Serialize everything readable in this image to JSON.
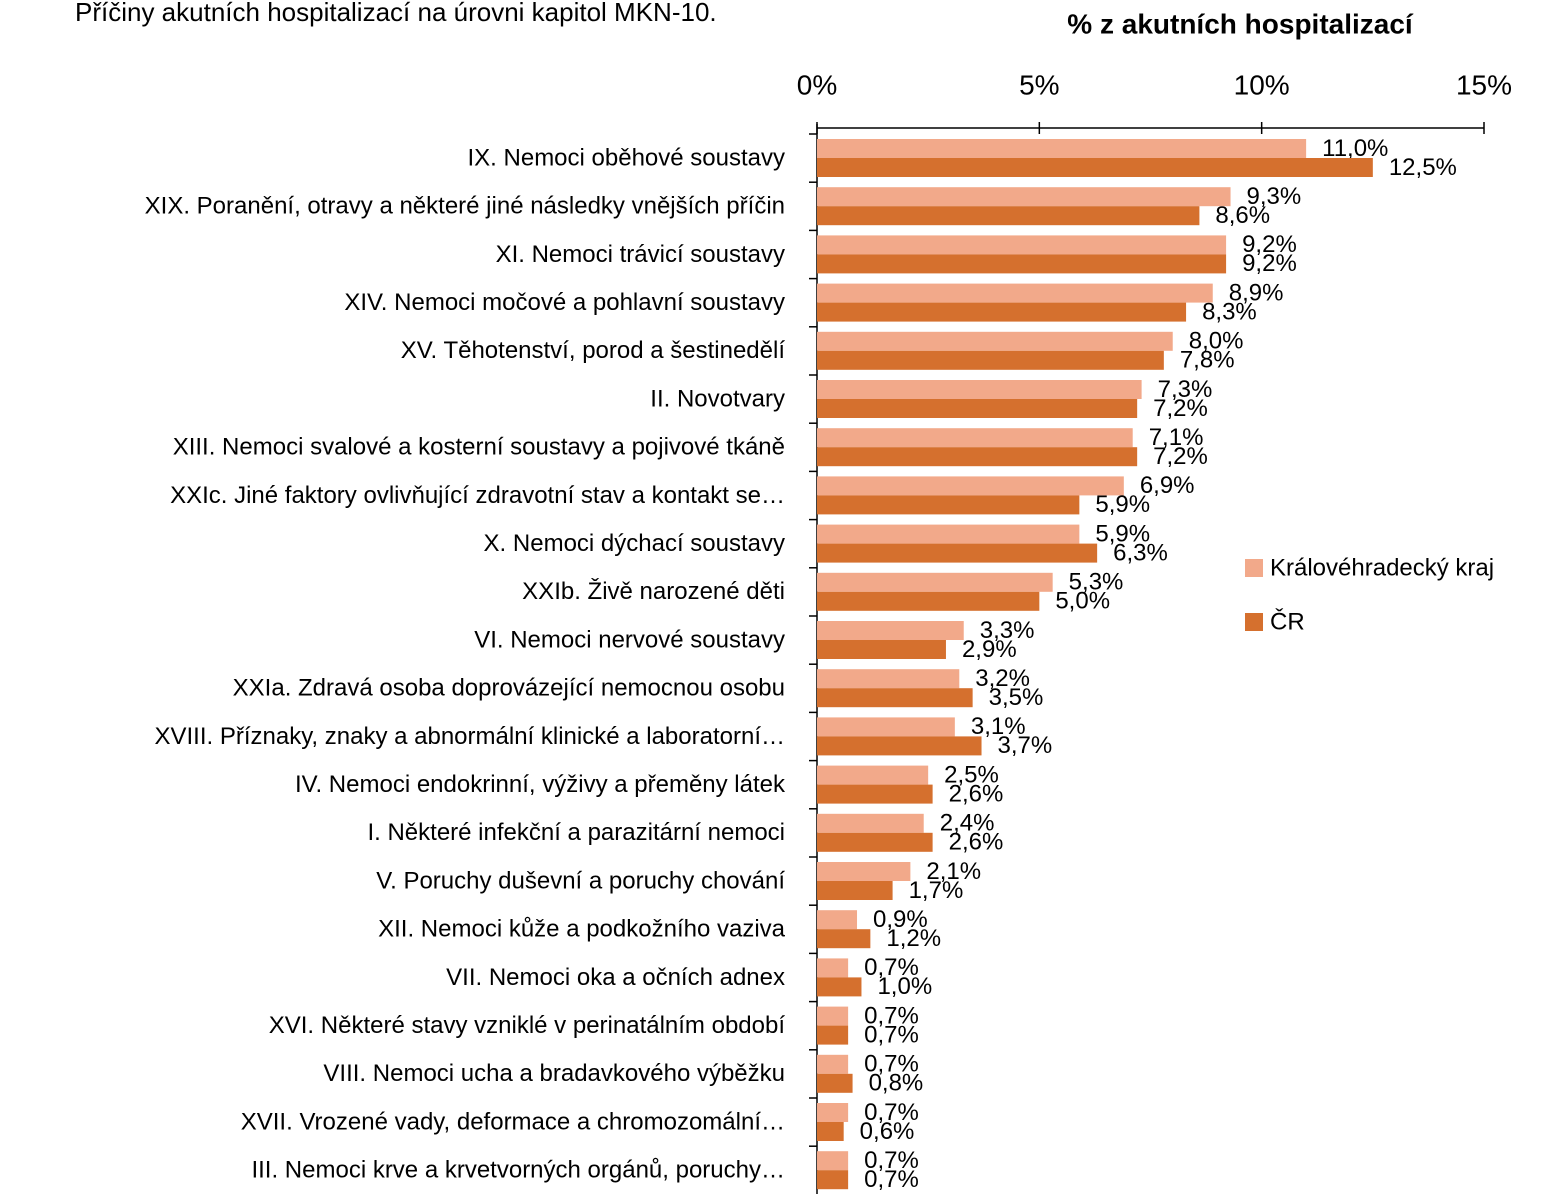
{
  "chart_data": {
    "type": "bar",
    "orientation": "horizontal",
    "subtitle": "Příčiny akutních hospitalizací na úrovni kapitol MKN-10.",
    "title": "% z akutních hospitalizací",
    "categories": [
      "IX. Nemoci oběhové soustavy",
      "XIX. Poranění, otravy a některé jiné následky vnějších příčin",
      "XI. Nemoci trávicí soustavy",
      "XIV. Nemoci močové a pohlavní soustavy",
      "XV. Těhotenství, porod a šestinedělí",
      "II. Novotvary",
      "XIII. Nemoci svalové a kosterní soustavy a pojivové tkáně",
      "XXIc. Jiné faktory ovlivňující zdravotní stav a kontakt se…",
      "X. Nemoci dýchací soustavy",
      "XXIb. Živě narozené děti",
      "VI. Nemoci nervové soustavy",
      "XXIa. Zdravá osoba doprovázející nemocnou osobu",
      "XVIII. Příznaky, znaky a abnormální klinické a laboratorní…",
      "IV. Nemoci endokrinní, výživy a přeměny látek",
      "I. Některé infekční a parazitární nemoci",
      "V. Poruchy duševní a poruchy chování",
      "XII. Nemoci kůže a podkožního vaziva",
      "VII. Nemoci oka a očních adnex",
      "XVI. Některé stavy vzniklé v perinatálním období",
      "VIII. Nemoci ucha a bradavkového výběžku",
      "XVII. Vrozené vady, deformace a chromozomální…",
      "III. Nemoci krve a krvetvorných orgánů, poruchy…"
    ],
    "series": [
      {
        "name": "Královéhradecký kraj",
        "color": "#f2a98a",
        "values": [
          11.0,
          9.3,
          9.2,
          8.9,
          8.0,
          7.3,
          7.1,
          6.9,
          5.9,
          5.3,
          3.3,
          3.2,
          3.1,
          2.5,
          2.4,
          2.1,
          0.9,
          0.7,
          0.7,
          0.7,
          0.7,
          0.7
        ],
        "value_labels": [
          "11,0%",
          "9,3%",
          "9,2%",
          "8,9%",
          "8,0%",
          "7,3%",
          "7,1%",
          "6,9%",
          "5,9%",
          "5,3%",
          "3,3%",
          "3,2%",
          "3,1%",
          "2,5%",
          "2,4%",
          "2,1%",
          "0,9%",
          "0,7%",
          "0,7%",
          "0,7%",
          "0,7%",
          "0,7%"
        ]
      },
      {
        "name": "ČR",
        "color": "#d5702e",
        "values": [
          12.5,
          8.6,
          9.2,
          8.3,
          7.8,
          7.2,
          7.2,
          5.9,
          6.3,
          5.0,
          2.9,
          3.5,
          3.7,
          2.6,
          2.6,
          1.7,
          1.2,
          1.0,
          0.7,
          0.8,
          0.6,
          0.7
        ],
        "value_labels": [
          "12,5%",
          "8,6%",
          "9,2%",
          "8,3%",
          "7,8%",
          "7,2%",
          "7,2%",
          "5,9%",
          "6,3%",
          "5,0%",
          "2,9%",
          "3,5%",
          "3,7%",
          "2,6%",
          "2,6%",
          "1,7%",
          "1,2%",
          "1,0%",
          "0,7%",
          "0,8%",
          "0,6%",
          "0,7%"
        ]
      }
    ],
    "xlim": [
      0,
      15
    ],
    "xticks": [
      {
        "value": 0,
        "label": "0%"
      },
      {
        "value": 5,
        "label": "5%"
      },
      {
        "value": 10,
        "label": "10%"
      },
      {
        "value": 15,
        "label": "15%"
      }
    ],
    "legend": "right"
  }
}
